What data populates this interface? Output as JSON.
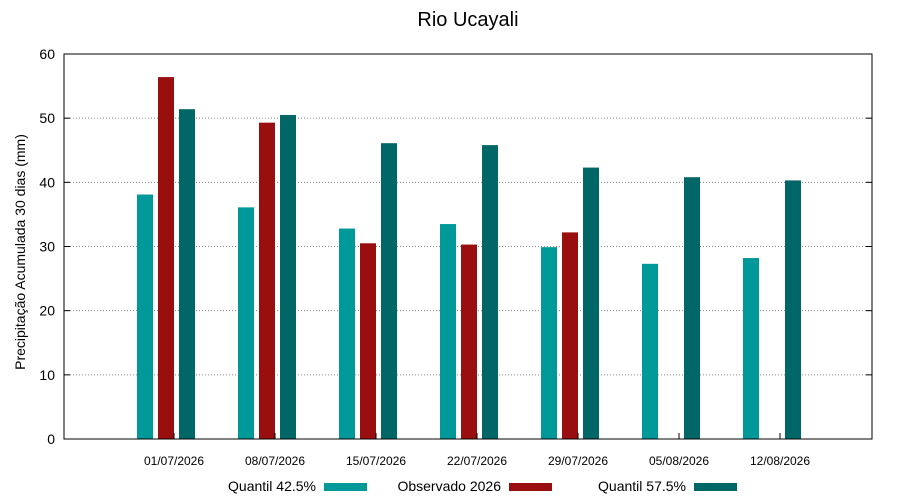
{
  "chart_data": {
    "type": "bar",
    "title": "Rio Ucayali",
    "xlabel": "",
    "ylabel": "Precipitação Acumulada 30 dias (mm)",
    "ylim": [
      0,
      60
    ],
    "yticks": [
      "0",
      "10",
      "20",
      "30",
      "40",
      "50",
      "60"
    ],
    "grid": true,
    "legend_position": "bottom",
    "categories": [
      "01/07/2026",
      "08/07/2026",
      "15/07/2026",
      "22/07/2026",
      "29/07/2026",
      "05/08/2026",
      "12/08/2026"
    ],
    "series": [
      {
        "name": "Quantil 42.5%",
        "color": "#009999",
        "values": [
          38.1,
          36.1,
          32.8,
          33.5,
          29.9,
          27.3,
          28.2
        ]
      },
      {
        "name": "Observado 2026",
        "color": "#990f0f",
        "values": [
          56.4,
          49.3,
          30.5,
          30.3,
          32.2,
          null,
          null
        ]
      },
      {
        "name": "Quantil 57.5%",
        "color": "#006666",
        "values": [
          51.4,
          50.5,
          46.1,
          45.8,
          42.3,
          40.8,
          40.3
        ]
      }
    ]
  }
}
